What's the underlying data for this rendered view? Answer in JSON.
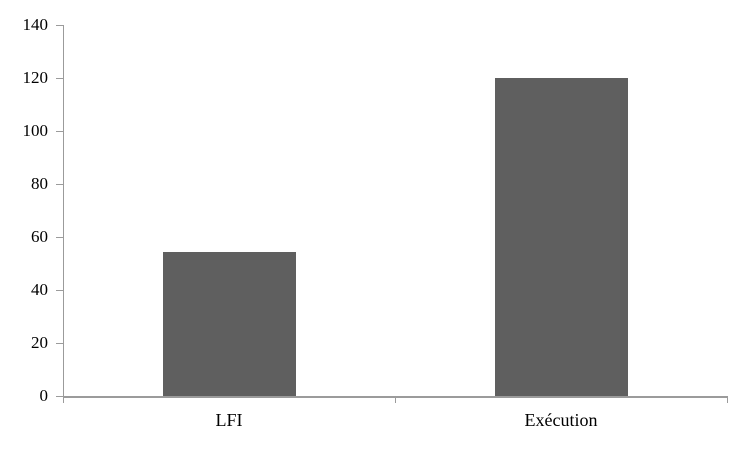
{
  "chart_data": {
    "type": "bar",
    "categories": [
      "LFI",
      "Exécution"
    ],
    "values": [
      54.5,
      120
    ],
    "title": "",
    "xlabel": "",
    "ylabel": "",
    "ylim": [
      0,
      140
    ],
    "ytick_step": 20,
    "ytick_labels": [
      "0",
      "20",
      "40",
      "60",
      "80",
      "100",
      "120",
      "140"
    ],
    "grid": false,
    "legend_position": "none",
    "bar_color": "#5f5f5f",
    "axis_color": "#9b9b9b",
    "text_color": "#000000"
  }
}
